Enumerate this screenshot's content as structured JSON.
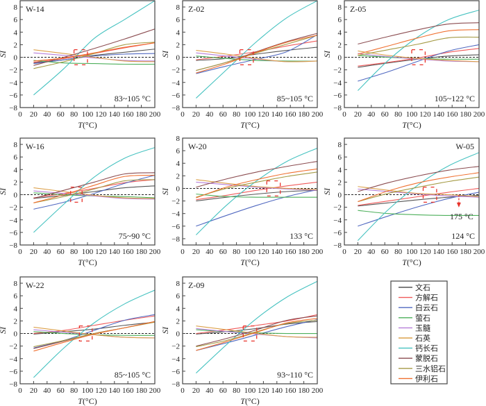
{
  "chart_data": {
    "type": "line",
    "x": [
      20,
      65,
      110,
      155,
      200
    ],
    "xlim": [
      0,
      200
    ],
    "xticks": [
      0,
      20,
      40,
      60,
      80,
      100,
      120,
      140,
      160,
      180,
      200
    ],
    "yticks": [
      -8,
      -6,
      -4,
      -2,
      0,
      2,
      4,
      6,
      8
    ],
    "xlabel_prefix": "T",
    "xlabel_suffix": "(°C)",
    "ylabel": "SI",
    "legend": {
      "position": "bottom-right",
      "entries": [
        "文石",
        "方解石",
        "白云石",
        "萤石",
        "玉髓",
        "石英",
        "钙长石",
        "蒙脱石",
        "三水铝石",
        "伊利石"
      ],
      "colors": [
        "#555555",
        "#f05a5a",
        "#5068c0",
        "#4caf5a",
        "#b67ed8",
        "#dca04a",
        "#45c2c0",
        "#8b4c50",
        "#a49a44",
        "#f07030"
      ]
    },
    "panels": [
      {
        "title": "W-14",
        "annotation": "83~105 °C",
        "ylim": [
          -8,
          9
        ],
        "box": [
          80,
          100
        ],
        "series": [
          [
            -0.9,
            -0.4,
            0.3,
            0.8,
            1.3
          ],
          [
            -0.8,
            -0.2,
            0.6,
            1.5,
            2.3
          ],
          [
            -1,
            -0.4,
            0.2,
            0.5,
            0.6
          ],
          [
            -0.5,
            -0.9,
            -1,
            -1.1,
            -1.1
          ],
          [
            0.7,
            0.3,
            -0.1,
            -0.5,
            -0.6
          ],
          [
            1.2,
            0.6,
            0,
            -0.6,
            -0.7
          ],
          [
            -6,
            -1.8,
            3,
            6,
            9
          ],
          [
            -1.3,
            0,
            1.4,
            2.9,
            4.5
          ],
          [
            -1.8,
            -0.7,
            0.6,
            2,
            2.4
          ],
          [
            -0.6,
            -0.1,
            0.7,
            1.6,
            2.3
          ]
        ]
      },
      {
        "title": "Z-02",
        "annotation": "85~105 °C",
        "ylim": [
          -8,
          9
        ],
        "box": [
          85,
          105
        ],
        "series": [
          [
            -0.5,
            -0.2,
            0.5,
            1.1,
            1.6
          ],
          [
            -0.4,
            0.2,
            0.9,
            1.8,
            2.6
          ],
          [
            -2.6,
            -1.4,
            -0.3,
            0.9,
            3.6
          ],
          [
            0.2,
            -0.2,
            -0.5,
            -0.6,
            -0.6
          ],
          [
            0.7,
            0.2,
            -0.3,
            -0.7,
            -0.6
          ],
          [
            1.1,
            0.5,
            -0.2,
            -0.7,
            -0.6
          ],
          [
            -6.5,
            -2,
            2.5,
            6.3,
            9
          ],
          [
            -2.1,
            -0.8,
            0.9,
            2.5,
            3.8
          ],
          [
            -2.1,
            -0.8,
            0.7,
            2.1,
            3.5
          ],
          [
            -2.5,
            -1,
            0.8,
            2.4,
            3.5
          ]
        ]
      },
      {
        "title": "Z-05",
        "annotation": "105~122 °C",
        "ylim": [
          -8,
          9
        ],
        "box": [
          100,
          120
        ],
        "series": [
          [
            -1.6,
            -0.9,
            -0.3,
            0.2,
            0.4
          ],
          [
            -1.4,
            -0.8,
            -0.1,
            0.8,
            1.4
          ],
          [
            -3.8,
            -2.3,
            -0.6,
            1,
            2
          ],
          [
            0.3,
            0,
            -0.2,
            -0.3,
            -0.3
          ],
          [
            0.6,
            0.1,
            -0.3,
            -0.6,
            -0.7
          ],
          [
            1,
            0.3,
            -0.2,
            -0.5,
            -0.7
          ],
          [
            -5.3,
            -0.5,
            3.3,
            6,
            7.5
          ],
          [
            2.1,
            3.3,
            4.4,
            5.3,
            5.5
          ],
          [
            0.3,
            1.2,
            2.1,
            3.1,
            3.2
          ],
          [
            0.5,
            1.8,
            3.1,
            4.2,
            4.4
          ]
        ]
      },
      {
        "title": "W-16",
        "annotation": "75~90 °C",
        "ylim": [
          -8,
          9
        ],
        "box": [
          75,
          92
        ],
        "series": [
          [
            -0.6,
            -0.1,
            0.5,
            1.1,
            1.4
          ],
          [
            -0.5,
            0.2,
            1,
            1.9,
            2.4
          ],
          [
            -2.3,
            -1.2,
            0.2,
            1.8,
            3.1
          ],
          [
            0.3,
            0,
            -0.2,
            -0.3,
            -0.5
          ],
          [
            0.6,
            0.2,
            -0.2,
            -0.6,
            -0.7
          ],
          [
            1.1,
            0.5,
            -0.1,
            -0.5,
            -0.6
          ],
          [
            -6,
            -1.5,
            2.8,
            5.8,
            7.5
          ],
          [
            -0.6,
            0.7,
            2,
            3.3,
            3.5
          ],
          [
            -1.3,
            -0.3,
            0.9,
            2.2,
            2.4
          ],
          [
            -1.3,
            0,
            1.5,
            2.9,
            3.1
          ]
        ]
      },
      {
        "title": "W-20",
        "annotation": "133 °C",
        "ylim": [
          -9,
          8
        ],
        "box": [
          125,
          145
        ],
        "series": [
          [
            -2,
            -1.4,
            -0.9,
            -0.5,
            -0.3
          ],
          [
            -1.8,
            -1.1,
            -0.3,
            0.4,
            1
          ],
          [
            -6,
            -4.3,
            -2.7,
            -1.3,
            -0.2
          ],
          [
            -0.9,
            -1.3,
            -1.4,
            -1.4,
            -1.4
          ],
          [
            1,
            0.6,
            0.2,
            -0.1,
            -0.3
          ],
          [
            1.4,
            0.8,
            0.3,
            0,
            -0.2
          ],
          [
            -7.4,
            -2.7,
            1.2,
            4.3,
            6.4
          ],
          [
            0.2,
            1.5,
            2.6,
            3.5,
            4.3
          ],
          [
            -1.4,
            0,
            1,
            1.9,
            2.6
          ],
          [
            -1.5,
            0.2,
            1.4,
            2.4,
            3.1
          ]
        ]
      },
      {
        "title": "W-05",
        "annotation": "124 °C",
        "annotation2": "175 °C",
        "ylim": [
          -8,
          9
        ],
        "box": [
          117,
          137
        ],
        "arrow": [
          170,
          -1.8
        ],
        "series": [
          [
            -1.8,
            -1.3,
            -0.8,
            -0.4,
            -0.1
          ],
          [
            -1.7,
            -1,
            -0.3,
            0.4,
            1
          ],
          [
            -5,
            -3.4,
            -1.9,
            -0.6,
            0.4
          ],
          [
            -2.5,
            -3,
            -3.2,
            -3.3,
            -3.3
          ],
          [
            0.9,
            0.5,
            0.1,
            -0.2,
            -0.4
          ],
          [
            1.3,
            0.7,
            0.2,
            0,
            -0.3
          ],
          [
            -7.3,
            -2.4,
            1.6,
            4.6,
            6.7
          ],
          [
            0.5,
            1.9,
            3,
            3.9,
            4.5
          ],
          [
            -1.1,
            0.2,
            1.2,
            2.1,
            2.8
          ],
          [
            -1.1,
            0.6,
            1.9,
            2.8,
            3.5
          ]
        ]
      },
      {
        "title": "W-22",
        "annotation": "85~105 °C",
        "ylim": [
          -8,
          9
        ],
        "box": [
          88,
          107
        ],
        "series": [
          [
            -0.1,
            0.3,
            0.7,
            1.3,
            1.8
          ],
          [
            0,
            0.5,
            1.3,
            2.1,
            2.8
          ],
          [
            -2.3,
            -1.1,
            0.5,
            2.1,
            3
          ],
          [
            0.3,
            0,
            -0.2,
            -0.3,
            -0.3
          ],
          [
            0.6,
            0.2,
            -0.2,
            -0.6,
            -0.7
          ],
          [
            1,
            0.4,
            -0.2,
            -0.6,
            -0.7
          ],
          [
            -7,
            -2.3,
            1.7,
            4.7,
            6.9
          ],
          [
            -2.4,
            -1.2,
            0,
            0.9,
            1.9
          ],
          [
            -2.1,
            -1.1,
            0,
            0.9,
            1.8
          ],
          [
            -2.8,
            -1.4,
            -0.1,
            0.9,
            1.9
          ]
        ]
      },
      {
        "title": "Z-09",
        "annotation": "93~110 °C",
        "ylim": [
          -8,
          9
        ],
        "box": [
          90,
          110
        ],
        "series": [
          [
            -0.1,
            0.3,
            0.8,
            1.5,
            1.9
          ],
          [
            0,
            0.6,
            1.3,
            2,
            3
          ],
          [
            -2.7,
            -1.5,
            -0.2,
            1.1,
            2.2
          ],
          [
            0.6,
            0.3,
            0.1,
            0,
            0
          ],
          [
            0.8,
            0.3,
            -0.1,
            -0.5,
            -0.7
          ],
          [
            1.2,
            0.6,
            0,
            -0.5,
            -0.6
          ],
          [
            -6.3,
            -1.8,
            2.4,
            5.8,
            8.3
          ],
          [
            -2,
            -0.8,
            0.6,
            2.1,
            2.8
          ],
          [
            -2.1,
            -1.1,
            0.3,
            1.6,
            2.1
          ],
          [
            -2.7,
            -1.3,
            0.2,
            1.7,
            2.4
          ]
        ]
      }
    ]
  }
}
